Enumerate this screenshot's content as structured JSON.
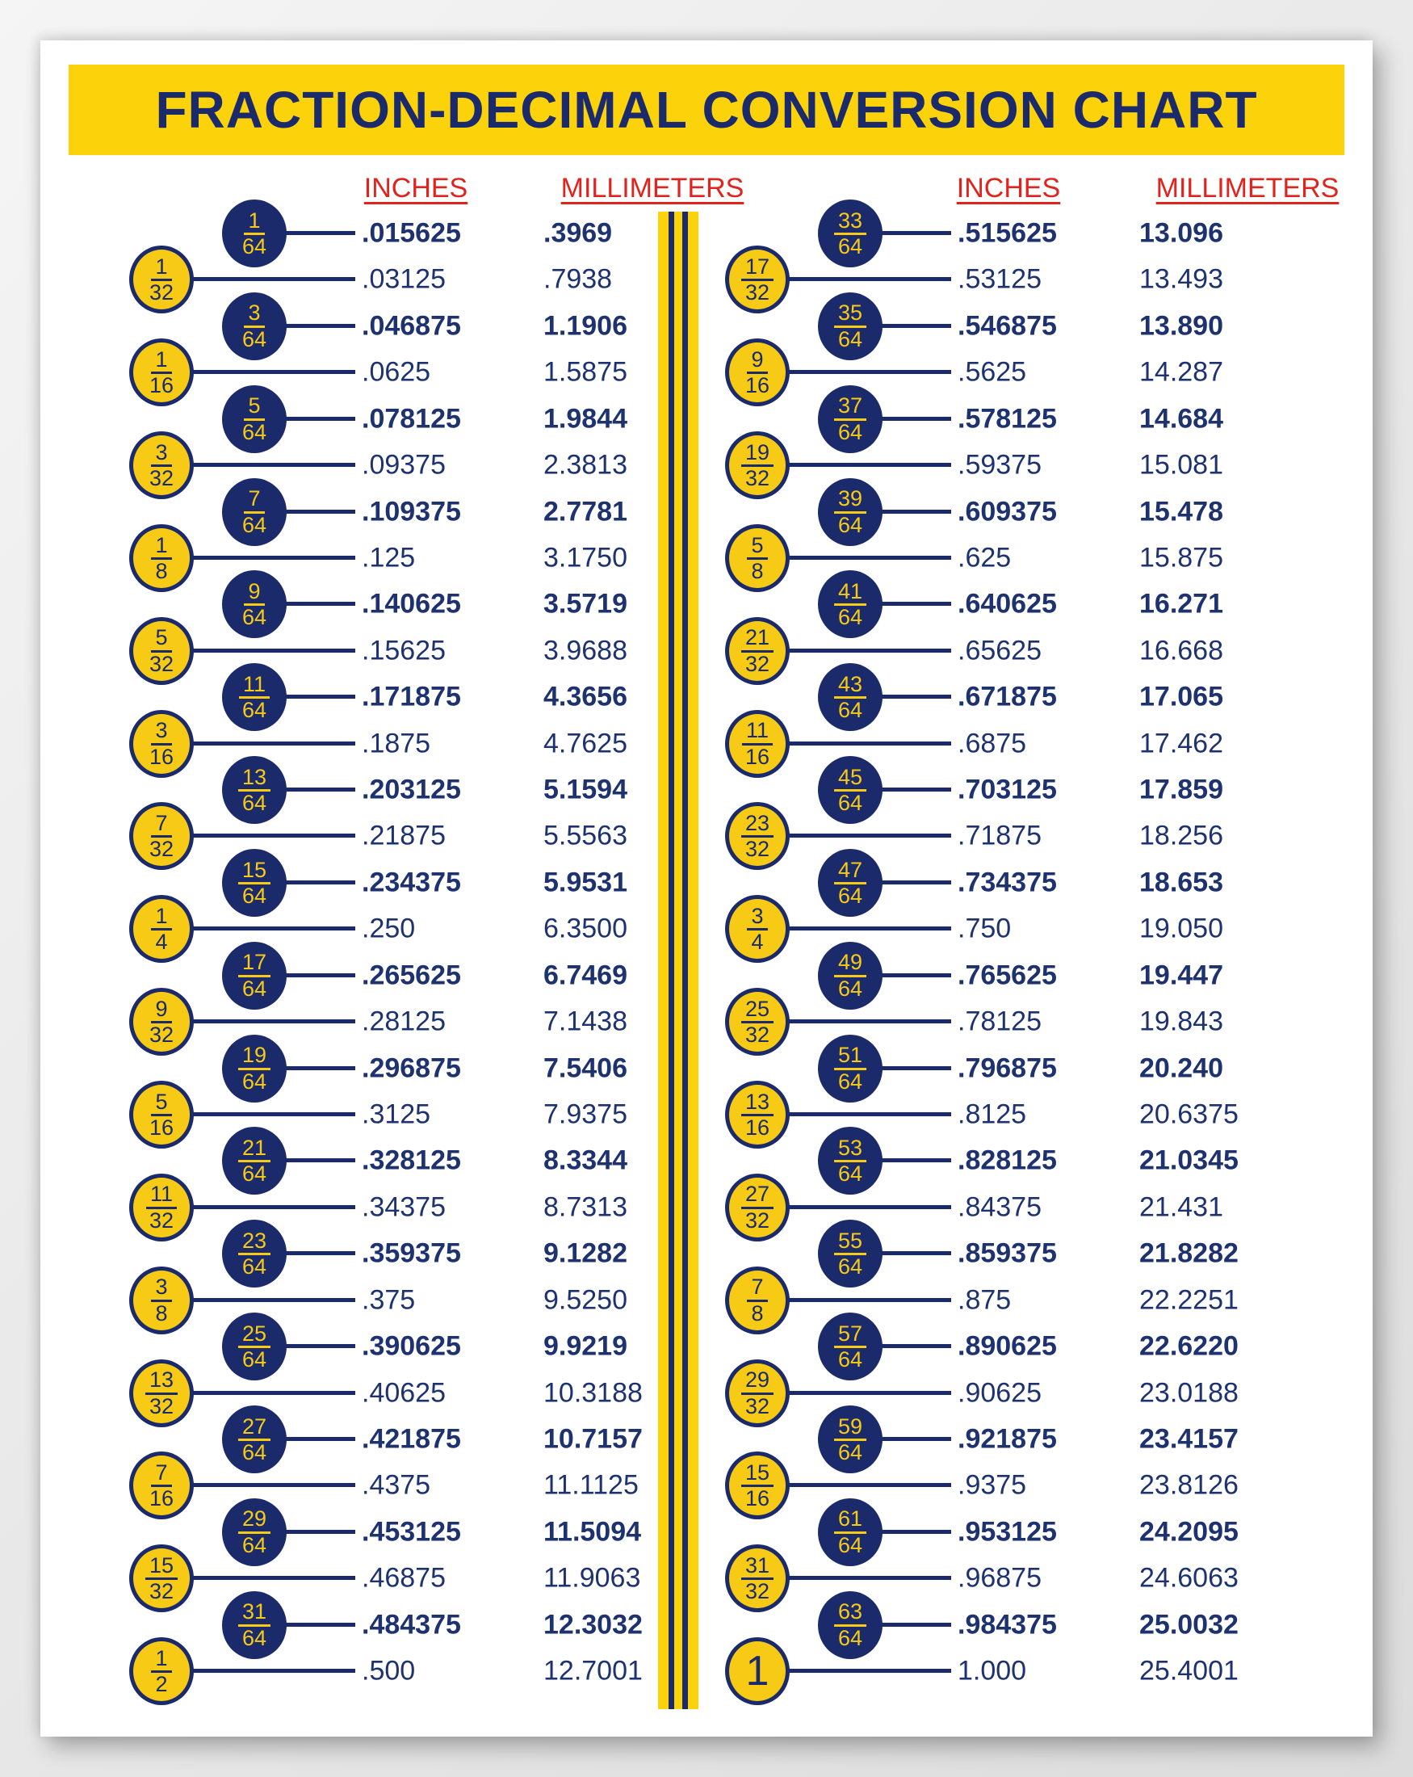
{
  "title": "FRACTION-DECIMAL CONVERSION CHART",
  "column_headers": {
    "inches": "INCHES",
    "millimeters": "MILLIMETERS"
  },
  "colors": {
    "navy": "#1b2a6b",
    "yellow": "#fcd20b",
    "circle_yellow": "#f7cb15",
    "header_red": "#e0231c",
    "value_text": "#1e3270",
    "page_bg": "#ffffff"
  },
  "table": {
    "left": [
      {
        "num": "1",
        "den": "64",
        "inch": ".015625",
        "mm": ".3969",
        "emph": true
      },
      {
        "num": "1",
        "den": "32",
        "inch": ".03125",
        "mm": ".7938",
        "emph": false
      },
      {
        "num": "3",
        "den": "64",
        "inch": ".046875",
        "mm": "1.1906",
        "emph": true
      },
      {
        "num": "1",
        "den": "16",
        "inch": ".0625",
        "mm": "1.5875",
        "emph": false
      },
      {
        "num": "5",
        "den": "64",
        "inch": ".078125",
        "mm": "1.9844",
        "emph": true
      },
      {
        "num": "3",
        "den": "32",
        "inch": ".09375",
        "mm": "2.3813",
        "emph": false
      },
      {
        "num": "7",
        "den": "64",
        "inch": ".109375",
        "mm": "2.7781",
        "emph": true
      },
      {
        "num": "1",
        "den": "8",
        "inch": ".125",
        "mm": "3.1750",
        "emph": false
      },
      {
        "num": "9",
        "den": "64",
        "inch": ".140625",
        "mm": "3.5719",
        "emph": true
      },
      {
        "num": "5",
        "den": "32",
        "inch": ".15625",
        "mm": "3.9688",
        "emph": false
      },
      {
        "num": "11",
        "den": "64",
        "inch": ".171875",
        "mm": "4.3656",
        "emph": true
      },
      {
        "num": "3",
        "den": "16",
        "inch": ".1875",
        "mm": "4.7625",
        "emph": false
      },
      {
        "num": "13",
        "den": "64",
        "inch": ".203125",
        "mm": "5.1594",
        "emph": true
      },
      {
        "num": "7",
        "den": "32",
        "inch": ".21875",
        "mm": "5.5563",
        "emph": false
      },
      {
        "num": "15",
        "den": "64",
        "inch": ".234375",
        "mm": "5.9531",
        "emph": true
      },
      {
        "num": "1",
        "den": "4",
        "inch": ".250",
        "mm": "6.3500",
        "emph": false
      },
      {
        "num": "17",
        "den": "64",
        "inch": ".265625",
        "mm": "6.7469",
        "emph": true
      },
      {
        "num": "9",
        "den": "32",
        "inch": ".28125",
        "mm": "7.1438",
        "emph": false
      },
      {
        "num": "19",
        "den": "64",
        "inch": ".296875",
        "mm": "7.5406",
        "emph": true
      },
      {
        "num": "5",
        "den": "16",
        "inch": ".3125",
        "mm": "7.9375",
        "emph": false
      },
      {
        "num": "21",
        "den": "64",
        "inch": ".328125",
        "mm": "8.3344",
        "emph": true
      },
      {
        "num": "11",
        "den": "32",
        "inch": ".34375",
        "mm": "8.7313",
        "emph": false
      },
      {
        "num": "23",
        "den": "64",
        "inch": ".359375",
        "mm": "9.1282",
        "emph": true
      },
      {
        "num": "3",
        "den": "8",
        "inch": ".375",
        "mm": "9.5250",
        "emph": false
      },
      {
        "num": "25",
        "den": "64",
        "inch": ".390625",
        "mm": "9.9219",
        "emph": true
      },
      {
        "num": "13",
        "den": "32",
        "inch": ".40625",
        "mm": "10.3188",
        "emph": false
      },
      {
        "num": "27",
        "den": "64",
        "inch": ".421875",
        "mm": "10.7157",
        "emph": true
      },
      {
        "num": "7",
        "den": "16",
        "inch": ".4375",
        "mm": "11.1125",
        "emph": false
      },
      {
        "num": "29",
        "den": "64",
        "inch": ".453125",
        "mm": "11.5094",
        "emph": true
      },
      {
        "num": "15",
        "den": "32",
        "inch": ".46875",
        "mm": "11.9063",
        "emph": false
      },
      {
        "num": "31",
        "den": "64",
        "inch": ".484375",
        "mm": "12.3032",
        "emph": true
      },
      {
        "num": "1",
        "den": "2",
        "inch": ".500",
        "mm": "12.7001",
        "emph": false
      }
    ],
    "right": [
      {
        "num": "33",
        "den": "64",
        "inch": ".515625",
        "mm": "13.096",
        "emph": true
      },
      {
        "num": "17",
        "den": "32",
        "inch": ".53125",
        "mm": "13.493",
        "emph": false
      },
      {
        "num": "35",
        "den": "64",
        "inch": ".546875",
        "mm": "13.890",
        "emph": true
      },
      {
        "num": "9",
        "den": "16",
        "inch": ".5625",
        "mm": "14.287",
        "emph": false
      },
      {
        "num": "37",
        "den": "64",
        "inch": ".578125",
        "mm": "14.684",
        "emph": true
      },
      {
        "num": "19",
        "den": "32",
        "inch": ".59375",
        "mm": "15.081",
        "emph": false
      },
      {
        "num": "39",
        "den": "64",
        "inch": ".609375",
        "mm": "15.478",
        "emph": true
      },
      {
        "num": "5",
        "den": "8",
        "inch": ".625",
        "mm": "15.875",
        "emph": false
      },
      {
        "num": "41",
        "den": "64",
        "inch": ".640625",
        "mm": "16.271",
        "emph": true
      },
      {
        "num": "21",
        "den": "32",
        "inch": ".65625",
        "mm": "16.668",
        "emph": false
      },
      {
        "num": "43",
        "den": "64",
        "inch": ".671875",
        "mm": "17.065",
        "emph": true
      },
      {
        "num": "11",
        "den": "16",
        "inch": ".6875",
        "mm": "17.462",
        "emph": false
      },
      {
        "num": "45",
        "den": "64",
        "inch": ".703125",
        "mm": "17.859",
        "emph": true
      },
      {
        "num": "23",
        "den": "32",
        "inch": ".71875",
        "mm": "18.256",
        "emph": false
      },
      {
        "num": "47",
        "den": "64",
        "inch": ".734375",
        "mm": "18.653",
        "emph": true
      },
      {
        "num": "3",
        "den": "4",
        "inch": ".750",
        "mm": "19.050",
        "emph": false
      },
      {
        "num": "49",
        "den": "64",
        "inch": ".765625",
        "mm": "19.447",
        "emph": true
      },
      {
        "num": "25",
        "den": "32",
        "inch": ".78125",
        "mm": "19.843",
        "emph": false
      },
      {
        "num": "51",
        "den": "64",
        "inch": ".796875",
        "mm": "20.240",
        "emph": true
      },
      {
        "num": "13",
        "den": "16",
        "inch": ".8125",
        "mm": "20.6375",
        "emph": false
      },
      {
        "num": "53",
        "den": "64",
        "inch": ".828125",
        "mm": "21.0345",
        "emph": true
      },
      {
        "num": "27",
        "den": "32",
        "inch": ".84375",
        "mm": "21.431",
        "emph": false
      },
      {
        "num": "55",
        "den": "64",
        "inch": ".859375",
        "mm": "21.8282",
        "emph": true
      },
      {
        "num": "7",
        "den": "8",
        "inch": ".875",
        "mm": "22.2251",
        "emph": false
      },
      {
        "num": "57",
        "den": "64",
        "inch": ".890625",
        "mm": "22.6220",
        "emph": true
      },
      {
        "num": "29",
        "den": "32",
        "inch": ".90625",
        "mm": "23.0188",
        "emph": false
      },
      {
        "num": "59",
        "den": "64",
        "inch": ".921875",
        "mm": "23.4157",
        "emph": true
      },
      {
        "num": "15",
        "den": "16",
        "inch": ".9375",
        "mm": "23.8126",
        "emph": false
      },
      {
        "num": "61",
        "den": "64",
        "inch": ".953125",
        "mm": "24.2095",
        "emph": true
      },
      {
        "num": "31",
        "den": "32",
        "inch": ".96875",
        "mm": "24.6063",
        "emph": false
      },
      {
        "num": "63",
        "den": "64",
        "inch": ".984375",
        "mm": "25.0032",
        "emph": true
      },
      {
        "num": "1",
        "den": null,
        "inch": "1.000",
        "mm": "25.4001",
        "emph": false
      }
    ]
  }
}
